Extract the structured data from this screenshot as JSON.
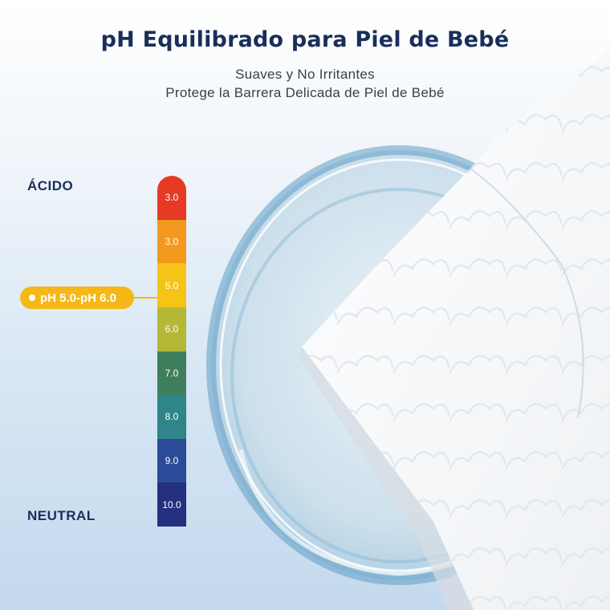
{
  "header": {
    "title": "pH Equilibrado para Piel de Bebé",
    "subtitle_line1": "Suaves y No Irritantes",
    "subtitle_line2": "Protege la Barrera Delicada de Piel de Bebé"
  },
  "scale": {
    "top_label": "ÁCIDO",
    "bottom_label": "NEUTRAL",
    "highlight": "pH 5.0-pH 6.0",
    "segments": [
      {
        "value": "3.0",
        "color": "#e63a24"
      },
      {
        "value": "3.0",
        "color": "#f39a1e"
      },
      {
        "value": "5.0",
        "color": "#f6c417"
      },
      {
        "value": "6.0",
        "color": "#b4b836"
      },
      {
        "value": "7.0",
        "color": "#3f7e5d"
      },
      {
        "value": "8.0",
        "color": "#2f8589"
      },
      {
        "value": "9.0",
        "color": "#2b4a97"
      },
      {
        "value": "10.0",
        "color": "#23307e"
      }
    ]
  },
  "illustration": {
    "icons": [
      "petri-dish-icon",
      "baby-wipe-icon"
    ]
  }
}
